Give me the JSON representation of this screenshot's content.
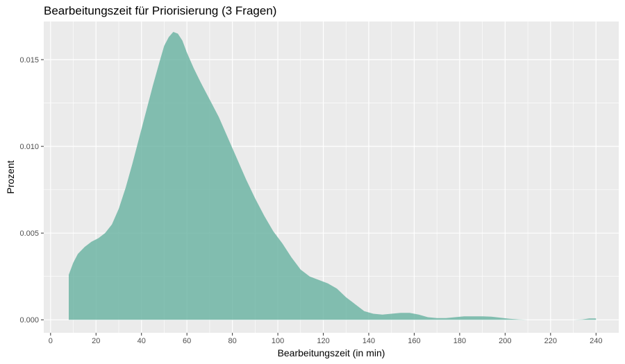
{
  "chart_data": {
    "type": "area",
    "title": "Bearbeitungszeit für Priorisierung (3 Fragen)",
    "xlabel": "Bearbeitungszeit (in min)",
    "ylabel": "Prozent",
    "xlim": [
      -3,
      250
    ],
    "ylim": [
      -0.00075,
      0.0172
    ],
    "x_ticks": [
      0,
      20,
      40,
      60,
      80,
      100,
      120,
      140,
      160,
      180,
      200,
      220,
      240
    ],
    "y_ticks": [
      0.0,
      0.005,
      0.01,
      0.015
    ],
    "y_tick_labels": [
      "0.000",
      "0.005",
      "0.010",
      "0.015"
    ],
    "grid": true,
    "legend": "none",
    "fill_color": "#66b2a0",
    "fill_opacity": 0.8,
    "panel_background": "#ebebeb",
    "series": [
      {
        "points": [
          [
            8,
            0.0026
          ],
          [
            10,
            0.0033
          ],
          [
            12,
            0.0038
          ],
          [
            15,
            0.0042
          ],
          [
            18,
            0.0045
          ],
          [
            21,
            0.0047
          ],
          [
            24,
            0.005
          ],
          [
            27,
            0.0055
          ],
          [
            30,
            0.0064
          ],
          [
            33,
            0.0076
          ],
          [
            36,
            0.009
          ],
          [
            39,
            0.0105
          ],
          [
            42,
            0.012
          ],
          [
            45,
            0.0135
          ],
          [
            48,
            0.0149
          ],
          [
            50,
            0.0158
          ],
          [
            52,
            0.0163
          ],
          [
            54,
            0.0166
          ],
          [
            56,
            0.0165
          ],
          [
            58,
            0.0161
          ],
          [
            60,
            0.0154
          ],
          [
            63,
            0.0145
          ],
          [
            66,
            0.0137
          ],
          [
            70,
            0.0127
          ],
          [
            74,
            0.0117
          ],
          [
            78,
            0.0105
          ],
          [
            82,
            0.0093
          ],
          [
            86,
            0.0081
          ],
          [
            90,
            0.007
          ],
          [
            94,
            0.006
          ],
          [
            98,
            0.0051
          ],
          [
            102,
            0.0044
          ],
          [
            106,
            0.0036
          ],
          [
            110,
            0.0029
          ],
          [
            114,
            0.0025
          ],
          [
            118,
            0.0023
          ],
          [
            122,
            0.0021
          ],
          [
            126,
            0.0018
          ],
          [
            130,
            0.0013
          ],
          [
            134,
            0.0009
          ],
          [
            138,
            0.0005
          ],
          [
            142,
            0.00035
          ],
          [
            146,
            0.0003
          ],
          [
            150,
            0.00035
          ],
          [
            154,
            0.0004
          ],
          [
            158,
            0.0004
          ],
          [
            162,
            0.0003
          ],
          [
            166,
            0.00015
          ],
          [
            170,
            0.0001
          ],
          [
            174,
            0.0001
          ],
          [
            178,
            0.00015
          ],
          [
            182,
            0.0002
          ],
          [
            186,
            0.0002
          ],
          [
            190,
            0.0002
          ],
          [
            194,
            0.00018
          ],
          [
            198,
            0.00012
          ],
          [
            202,
            6e-05
          ],
          [
            206,
            2e-05
          ],
          [
            210,
            0.0
          ],
          [
            230,
            0.0
          ],
          [
            234,
            2e-05
          ],
          [
            237,
            8e-05
          ],
          [
            240,
            8e-05
          ]
        ]
      }
    ]
  }
}
